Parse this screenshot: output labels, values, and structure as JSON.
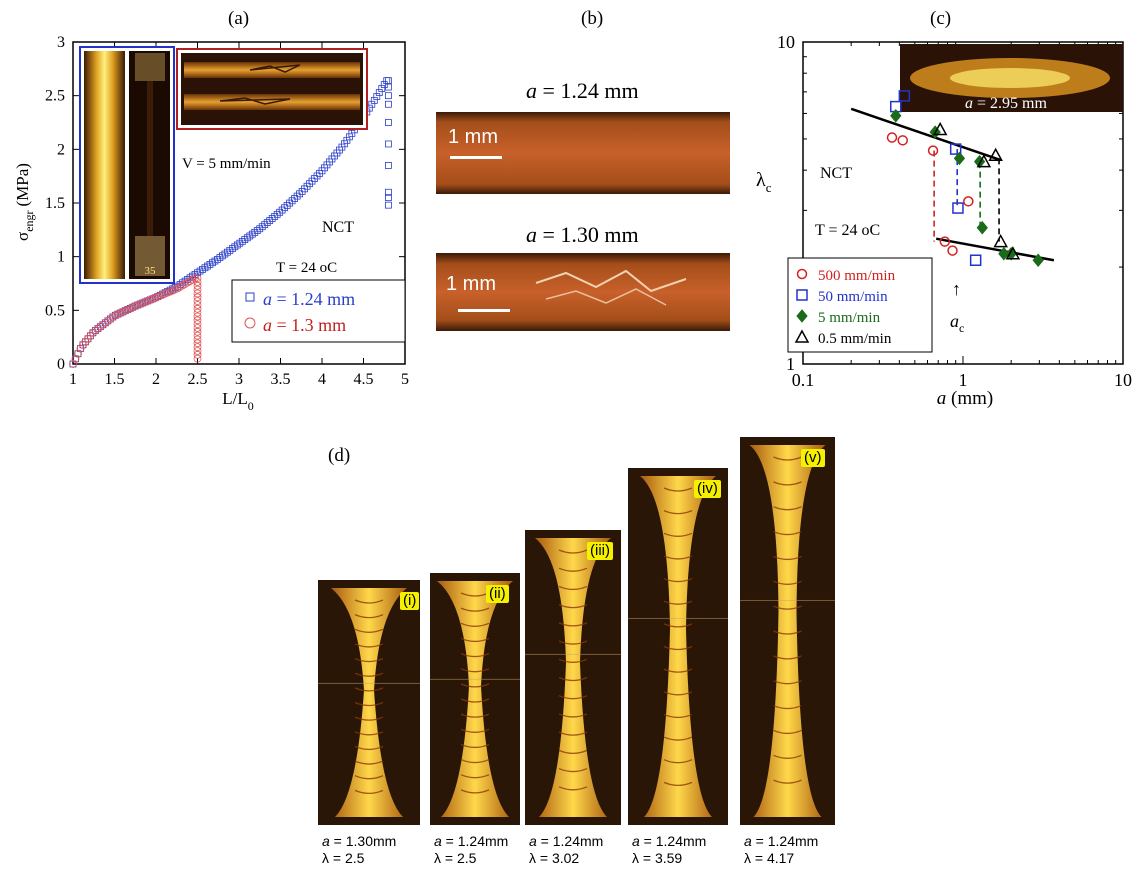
{
  "panel_labels": {
    "a": "(a)",
    "b": "(b)",
    "c": "(c)",
    "d": "(d)"
  },
  "chart_data": [
    {
      "type": "scatter",
      "panel": "(a)",
      "xlabel": "L/L0",
      "ylabel": "σ engr (MPa)",
      "xlim": [
        1,
        5
      ],
      "ylim": [
        0,
        3
      ],
      "xticks": [
        "1",
        "1.5",
        "2",
        "2.5",
        "3",
        "3.5",
        "4",
        "4.5",
        "5"
      ],
      "yticks": [
        "0",
        "0.5",
        "1",
        "1.5",
        "2",
        "2.5",
        "3"
      ],
      "annotations": {
        "speed": "V = 5 mm/min",
        "material": "NCT",
        "temperature": "T = 24 oC"
      },
      "series": [
        {
          "name": "a = 1.24 mm",
          "color": "#2a3fc8",
          "marker": "square",
          "curve": [
            [
              1,
              0
            ],
            [
              1.1,
              0.16
            ],
            [
              1.25,
              0.3
            ],
            [
              1.5,
              0.45
            ],
            [
              1.75,
              0.54
            ],
            [
              2,
              0.62
            ],
            [
              2.25,
              0.72
            ],
            [
              2.5,
              0.85
            ],
            [
              2.75,
              0.98
            ],
            [
              3,
              1.12
            ],
            [
              3.25,
              1.26
            ],
            [
              3.5,
              1.42
            ],
            [
              3.75,
              1.6
            ],
            [
              4,
              1.8
            ],
            [
              4.25,
              2.03
            ],
            [
              4.5,
              2.3
            ],
            [
              4.65,
              2.48
            ],
            [
              4.78,
              2.64
            ]
          ],
          "drop_x": 4.8,
          "drop_values": [
            2.64,
            2.58,
            2.5,
            2.42,
            2.25,
            2.05,
            1.85,
            1.6,
            1.55,
            1.48
          ]
        },
        {
          "name": "a = 1.3 mm",
          "color": "#e05555",
          "marker": "circle",
          "curve": [
            [
              1,
              0
            ],
            [
              1.1,
              0.16
            ],
            [
              1.25,
              0.3
            ],
            [
              1.5,
              0.45
            ],
            [
              1.75,
              0.54
            ],
            [
              2,
              0.62
            ],
            [
              2.25,
              0.7
            ],
            [
              2.47,
              0.8
            ]
          ],
          "drop_x": 2.5,
          "drop_values": [
            0.8,
            0.05
          ]
        }
      ]
    },
    {
      "type": "scatter",
      "panel": "(c)",
      "xlabel": "a (mm)",
      "ylabel": "λc",
      "xscale": "log",
      "yscale": "log",
      "xlim": [
        0.1,
        10
      ],
      "ylim": [
        1,
        10
      ],
      "xticks": [
        "0.1",
        "1",
        "10"
      ],
      "yticks": [
        "1",
        "10"
      ],
      "annotations": {
        "material": "NCT",
        "temperature": "T = 24 oC",
        "critical": "ac",
        "inset": "a = 2.95 mm"
      },
      "series": [
        {
          "name": "500 mm/min",
          "color": "#d42020",
          "marker": "circle",
          "points": [
            [
              0.36,
              5.05
            ],
            [
              0.42,
              4.95
            ],
            [
              0.65,
              4.6
            ],
            [
              0.77,
              2.4
            ],
            [
              0.86,
              2.25
            ],
            [
              1.08,
              3.2
            ]
          ]
        },
        {
          "name": "50 mm/min",
          "color": "#2233cc",
          "marker": "square",
          "points": [
            [
              0.38,
              6.3
            ],
            [
              0.43,
              6.8
            ],
            [
              0.9,
              4.65
            ],
            [
              0.93,
              3.05
            ],
            [
              1.2,
              2.1
            ]
          ]
        },
        {
          "name": "5 mm/min",
          "color": "#1a6b1a",
          "marker": "diamond",
          "points": [
            [
              0.38,
              5.9
            ],
            [
              0.67,
              5.25
            ],
            [
              0.95,
              4.35
            ],
            [
              1.27,
              4.25
            ],
            [
              1.32,
              2.65
            ],
            [
              1.8,
              2.2
            ],
            [
              2.0,
              2.2
            ],
            [
              2.95,
              2.1
            ]
          ]
        },
        {
          "name": "0.5 mm/min",
          "color": "#000000",
          "marker": "triangle",
          "points": [
            [
              0.72,
              5.35
            ],
            [
              1.35,
              4.25
            ],
            [
              1.6,
              4.45
            ],
            [
              1.72,
              2.4
            ],
            [
              2.05,
              2.2
            ]
          ]
        }
      ],
      "fit_lines": [
        [
          [
            0.2,
            6.2
          ],
          [
            1.72,
            4.3
          ]
        ],
        [
          [
            0.68,
            2.45
          ],
          [
            3.7,
            2.1
          ]
        ]
      ],
      "transitions": [
        {
          "x": 0.66,
          "from": 4.6,
          "to": 2.4,
          "color": "#d42020"
        },
        {
          "x": 0.92,
          "from": 4.65,
          "to": 3.05,
          "color": "#2233cc"
        },
        {
          "x": 1.28,
          "from": 4.25,
          "to": 2.65,
          "color": "#1a6b1a"
        },
        {
          "x": 1.68,
          "from": 4.35,
          "to": 2.4,
          "color": "#000000"
        }
      ]
    }
  ],
  "panel_a": {
    "xlabel_main": "L/L",
    "xlabel_sub": "0",
    "ylabel_main": "σ",
    "ylabel_sub": "engr",
    "ylabel_unit": "(MPa)",
    "legend": [
      {
        "italic": "a",
        "rest": " = 1.24 mm"
      },
      {
        "italic": "a",
        "rest": " = 1.3 mm"
      }
    ],
    "photo_stamp": "35"
  },
  "panel_b": {
    "top_header_italic": "a",
    "top_header_rest": " = 1.24 mm",
    "bottom_header_italic": "a",
    "bottom_header_rest": " = 1.30 mm",
    "scale_top": "1 mm",
    "scale_bottom": "1 mm"
  },
  "panel_c": {
    "xlabel_italic": "a",
    "xlabel_rest": " (mm)",
    "ylabel_main": "λ",
    "ylabel_sub": "c",
    "ac_italic": "a",
    "ac_sub": "c",
    "inset_italic": "a",
    "inset_rest": " = 2.95 mm",
    "arrow": "↑"
  },
  "panel_d": {
    "specimens": [
      {
        "roman": "(i)",
        "a_label": "a",
        "a_value": " = 1.30mm",
        "lambda_label": "λ",
        "lambda_value": " = 2.5"
      },
      {
        "roman": "(ii)",
        "a_label": "a",
        "a_value": " = 1.24mm",
        "lambda_label": "λ",
        "lambda_value": " = 2.5"
      },
      {
        "roman": "(iii)",
        "a_label": "a",
        "a_value": " = 1.24mm",
        "lambda_label": "λ",
        "lambda_value": " = 3.02"
      },
      {
        "roman": "(iv)",
        "a_label": "a",
        "a_value": " = 1.24mm",
        "lambda_label": "λ",
        "lambda_value": " = 3.59"
      },
      {
        "roman": "(v)",
        "a_label": "a",
        "a_value": " = 1.24mm",
        "lambda_label": "λ",
        "lambda_value": " = 4.17"
      }
    ]
  }
}
